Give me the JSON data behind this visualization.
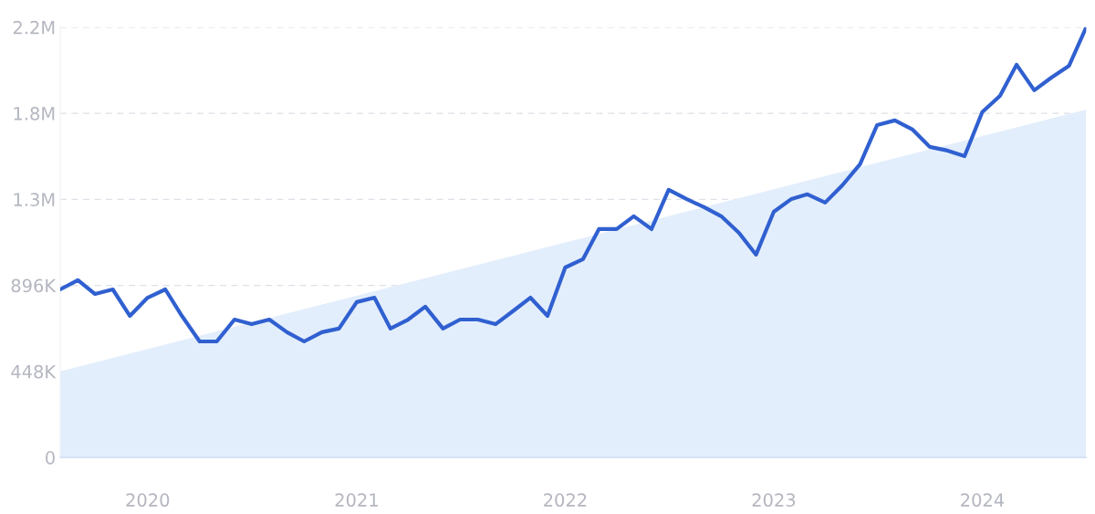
{
  "chart_data": {
    "type": "line",
    "x": [
      "2019-08",
      "2019-09",
      "2019-10",
      "2019-11",
      "2019-12",
      "2020-01",
      "2020-02",
      "2020-03",
      "2020-04",
      "2020-05",
      "2020-06",
      "2020-07",
      "2020-08",
      "2020-09",
      "2020-10",
      "2020-11",
      "2020-12",
      "2021-01",
      "2021-02",
      "2021-03",
      "2021-04",
      "2021-05",
      "2021-06",
      "2021-07",
      "2021-08",
      "2021-09",
      "2021-10",
      "2021-11",
      "2021-12",
      "2022-01",
      "2022-02",
      "2022-03",
      "2022-04",
      "2022-05",
      "2022-06",
      "2022-07",
      "2022-08",
      "2022-09",
      "2022-10",
      "2022-11",
      "2022-12",
      "2023-01",
      "2023-02",
      "2023-03",
      "2023-04",
      "2023-05",
      "2023-06",
      "2023-07",
      "2023-08",
      "2023-09",
      "2023-10",
      "2023-11",
      "2023-12",
      "2024-01",
      "2024-02",
      "2024-03",
      "2024-04",
      "2024-05",
      "2024-06",
      "2024-07"
    ],
    "series": [
      {
        "type": "area",
        "color": "#e3eefc",
        "x": [
          "2019-08",
          "2024-07"
        ],
        "values": [
          448000,
          1812000
        ]
      },
      {
        "color": "#3060d0",
        "values": [
          875000,
          923000,
          851000,
          875000,
          737000,
          832000,
          875000,
          737000,
          604000,
          604000,
          718000,
          694000,
          718000,
          652000,
          604000,
          652000,
          671000,
          809000,
          832000,
          671000,
          718000,
          785000,
          671000,
          718000,
          718000,
          694000,
          761000,
          832000,
          737000,
          989000,
          1032000,
          1189000,
          1189000,
          1256000,
          1189000,
          1394000,
          1346000,
          1303000,
          1256000,
          1170000,
          1056000,
          1279000,
          1346000,
          1370000,
          1327000,
          1417000,
          1527000,
          1731000,
          1755000,
          1707000,
          1617000,
          1598000,
          1569000,
          1798000,
          1883000,
          2045000,
          1912000,
          1978000,
          2040000,
          2240000
        ]
      }
    ],
    "xlim": [
      "2019-08",
      "2024-07"
    ],
    "xticks": [
      {
        "value": "2020-01",
        "label": "2020"
      },
      {
        "value": "2021-01",
        "label": "2021"
      },
      {
        "value": "2022-01",
        "label": "2022"
      },
      {
        "value": "2023-01",
        "label": "2023"
      },
      {
        "value": "2024-01",
        "label": "2024"
      }
    ],
    "ylim": [
      0,
      2240000
    ],
    "yticks": [
      {
        "value": 0,
        "label": "0"
      },
      {
        "value": 448000,
        "label": "448K"
      },
      {
        "value": 896000,
        "label": "896K"
      },
      {
        "value": 1344000,
        "label": "1.3M"
      },
      {
        "value": 1792000,
        "label": "1.8M"
      },
      {
        "value": 2240000,
        "label": "2.2M"
      }
    ],
    "grid": "y",
    "line_style": "solid",
    "marker": "none"
  }
}
